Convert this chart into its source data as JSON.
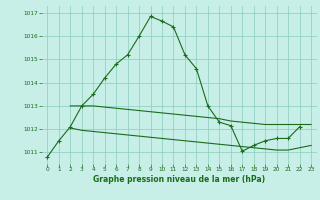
{
  "hours": [
    0,
    1,
    2,
    3,
    4,
    5,
    6,
    7,
    8,
    9,
    10,
    11,
    12,
    13,
    14,
    15,
    16,
    17,
    18,
    19,
    20,
    21,
    22,
    23
  ],
  "line_main": [
    1010.8,
    1011.5,
    1012.1,
    1013.0,
    1013.5,
    1014.2,
    1014.8,
    1015.2,
    1016.0,
    1016.85,
    1016.65,
    1016.4,
    1015.2,
    1014.6,
    1013.0,
    1012.3,
    1012.15,
    1011.05,
    1011.3,
    1011.5,
    1011.6,
    1011.6,
    1012.1,
    null
  ],
  "line_upper_flat": [
    null,
    null,
    1013.0,
    1013.0,
    1013.0,
    1012.95,
    1012.9,
    1012.85,
    1012.8,
    1012.75,
    1012.7,
    1012.65,
    1012.6,
    1012.55,
    1012.5,
    1012.45,
    1012.35,
    1012.3,
    1012.25,
    1012.2,
    1012.2,
    1012.2,
    1012.2,
    1012.2
  ],
  "line_lower_flat": [
    null,
    null,
    1012.05,
    1011.95,
    1011.9,
    1011.85,
    1011.8,
    1011.75,
    1011.7,
    1011.65,
    1011.6,
    1011.55,
    1011.5,
    1011.45,
    1011.4,
    1011.35,
    1011.3,
    1011.25,
    1011.2,
    1011.15,
    1011.1,
    1011.1,
    1011.2,
    1011.3
  ],
  "ylim": [
    1010.5,
    1017.3
  ],
  "yticks": [
    1011,
    1012,
    1013,
    1014,
    1015,
    1016,
    1017
  ],
  "xlim": [
    -0.5,
    23.5
  ],
  "xticks": [
    0,
    1,
    2,
    3,
    4,
    5,
    6,
    7,
    8,
    9,
    10,
    11,
    12,
    13,
    14,
    15,
    16,
    17,
    18,
    19,
    20,
    21,
    22,
    23
  ],
  "line_color": "#1a6b1a",
  "bg_color": "#c8eee8",
  "grid_color": "#88ccbb",
  "xlabel": "Graphe pression niveau de la mer (hPa)"
}
